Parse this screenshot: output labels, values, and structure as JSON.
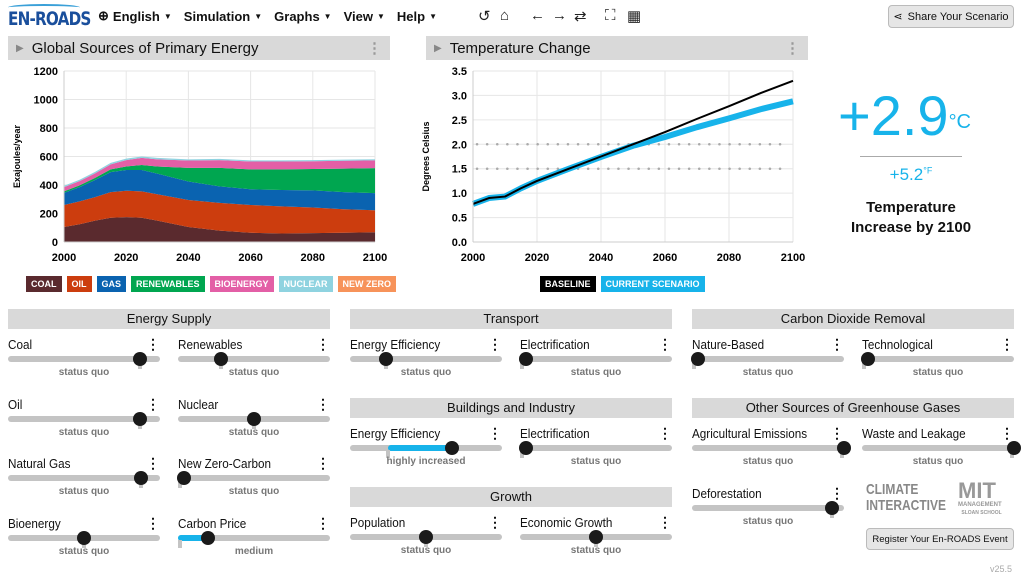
{
  "app": {
    "logo": "EN-ROADS",
    "version": "v25.5"
  },
  "menu": [
    {
      "label": "English",
      "icon": "globe-icon"
    },
    {
      "label": "Simulation"
    },
    {
      "label": "Graphs"
    },
    {
      "label": "View"
    },
    {
      "label": "Help"
    }
  ],
  "toolbar_icons": [
    "undo-icon",
    "home-icon",
    "back-icon",
    "forward-icon",
    "swap-icon",
    "fullscreen-icon",
    "grid-icon"
  ],
  "share_label": "Share Your Scenario",
  "register_label": "Register Your En-ROADS Event",
  "partners": {
    "climate": "CLIMATE INTERACTIVE",
    "mit": "MIT",
    "mit_sub": "MANAGEMENT",
    "mit_sub2": "SLOAN SCHOOL"
  },
  "result": {
    "celsius": "+2.9",
    "c_unit": "°C",
    "fahrenheit": "+5.2",
    "f_unit": "°F",
    "caption": "Temperature Increase by 2100"
  },
  "chart_data": [
    {
      "title": "Global Sources of Primary Energy",
      "type": "area",
      "ylabel": "Exajoules/year",
      "ylim": [
        0,
        1200
      ],
      "yticks": [
        0,
        200,
        400,
        600,
        800,
        1000,
        1200
      ],
      "xlim": [
        2000,
        2100
      ],
      "xticks": [
        2000,
        2020,
        2040,
        2060,
        2080,
        2100
      ],
      "grid": true,
      "legend_placement": "bottom",
      "x": [
        2000,
        2005,
        2010,
        2015,
        2020,
        2025,
        2030,
        2040,
        2050,
        2060,
        2070,
        2080,
        2090,
        2100
      ],
      "series": [
        {
          "name": "COAL",
          "color": "#5a2a2e",
          "values": [
            105,
            125,
            150,
            170,
            175,
            170,
            150,
            105,
            80,
            65,
            60,
            62,
            65,
            68
          ]
        },
        {
          "name": "OIL",
          "color": "#cc3d0e",
          "values": [
            155,
            160,
            165,
            180,
            185,
            185,
            185,
            190,
            195,
            195,
            190,
            180,
            165,
            155
          ]
        },
        {
          "name": "GAS",
          "color": "#0a63b0",
          "values": [
            85,
            100,
            120,
            140,
            145,
            150,
            145,
            130,
            115,
            110,
            115,
            120,
            120,
            120
          ]
        },
        {
          "name": "RENEWABLES",
          "color": "#00a650",
          "values": [
            10,
            12,
            15,
            20,
            25,
            35,
            50,
            95,
            130,
            140,
            145,
            150,
            165,
            175
          ]
        },
        {
          "name": "BIOENERGY",
          "color": "#e35fa6",
          "values": [
            30,
            30,
            32,
            35,
            45,
            50,
            50,
            52,
            55,
            55,
            55,
            55,
            55,
            55
          ]
        },
        {
          "name": "NUCLEAR",
          "color": "#8fd3e0",
          "values": [
            10,
            10,
            10,
            10,
            10,
            10,
            10,
            8,
            8,
            8,
            8,
            8,
            8,
            8
          ]
        },
        {
          "name": "NEW ZERO",
          "color": "#f7935a",
          "values": [
            0,
            0,
            0,
            0,
            0,
            0,
            0,
            0,
            0,
            0,
            0,
            0,
            0,
            0
          ]
        }
      ]
    },
    {
      "title": "Temperature Change",
      "type": "line",
      "ylabel": "Degrees Celsius",
      "ylim": [
        0,
        3.5
      ],
      "yticks": [
        "0.0",
        "0.5",
        "1.0",
        "1.5",
        "2.0",
        "2.5",
        "3.0",
        "3.5"
      ],
      "xlim": [
        2000,
        2100
      ],
      "xticks": [
        2000,
        2020,
        2040,
        2060,
        2080,
        2100
      ],
      "grid": true,
      "reference_lines": [
        1.5,
        2.0
      ],
      "legend_placement": "bottom",
      "x": [
        2000,
        2005,
        2010,
        2015,
        2020,
        2030,
        2040,
        2050,
        2060,
        2070,
        2080,
        2090,
        2100
      ],
      "series": [
        {
          "name": "BASELINE",
          "color": "#000000",
          "values": [
            0.78,
            0.9,
            0.93,
            1.1,
            1.25,
            1.5,
            1.75,
            2.0,
            2.25,
            2.52,
            2.78,
            3.05,
            3.3
          ]
        },
        {
          "name": "CURRENT SCENARIO",
          "color": "#17b3ea",
          "values": [
            0.78,
            0.9,
            0.93,
            1.1,
            1.25,
            1.5,
            1.74,
            1.97,
            2.15,
            2.35,
            2.53,
            2.72,
            2.88
          ]
        }
      ]
    }
  ],
  "groups": [
    {
      "title": "Energy Supply",
      "items": [
        {
          "label": "Coal",
          "status": "status quo",
          "value": 0.87
        },
        {
          "label": "Renewables",
          "status": "status quo",
          "value": 0.28
        },
        {
          "label": "Oil",
          "status": "status quo",
          "value": 0.87
        },
        {
          "label": "Nuclear",
          "status": "status quo",
          "value": 0.5
        },
        {
          "label": "Natural Gas",
          "status": "status quo",
          "value": 0.875
        },
        {
          "label": "New Zero-Carbon",
          "status": "status quo",
          "value": 0
        },
        {
          "label": "Bioenergy",
          "status": "status quo",
          "value": 0.5
        },
        {
          "label": "Carbon Price",
          "status": "medium",
          "value": 0.2,
          "default": 0
        }
      ]
    },
    {
      "title": "Transport",
      "items": [
        {
          "label": "Energy Efficiency",
          "status": "status quo",
          "value": 0.24
        },
        {
          "label": "Electrification",
          "status": "status quo",
          "value": 0
        }
      ]
    },
    {
      "title": "Buildings and Industry",
      "items": [
        {
          "label": "Energy Efficiency",
          "status": "highly increased",
          "value": 0.67,
          "default": 0.25
        },
        {
          "label": "Electrification",
          "status": "status quo",
          "value": 0
        }
      ]
    },
    {
      "title": "Growth",
      "items": [
        {
          "label": "Population",
          "status": "status quo",
          "value": 0.5
        },
        {
          "label": "Economic Growth",
          "status": "status quo",
          "value": 0.5
        }
      ]
    },
    {
      "title": "Carbon Dioxide Removal",
      "items": [
        {
          "label": "Nature-Based",
          "status": "status quo",
          "value": 0
        },
        {
          "label": "Technological",
          "status": "status quo",
          "value": 0
        }
      ]
    },
    {
      "title": "Other Sources of Greenhouse Gases",
      "items": [
        {
          "label": "Agricultural Emissions",
          "status": "status quo",
          "value": 1
        },
        {
          "label": "Waste and Leakage",
          "status": "status quo",
          "value": 1
        },
        {
          "label": "Deforestation",
          "status": "status quo",
          "value": 0.92
        }
      ]
    }
  ]
}
